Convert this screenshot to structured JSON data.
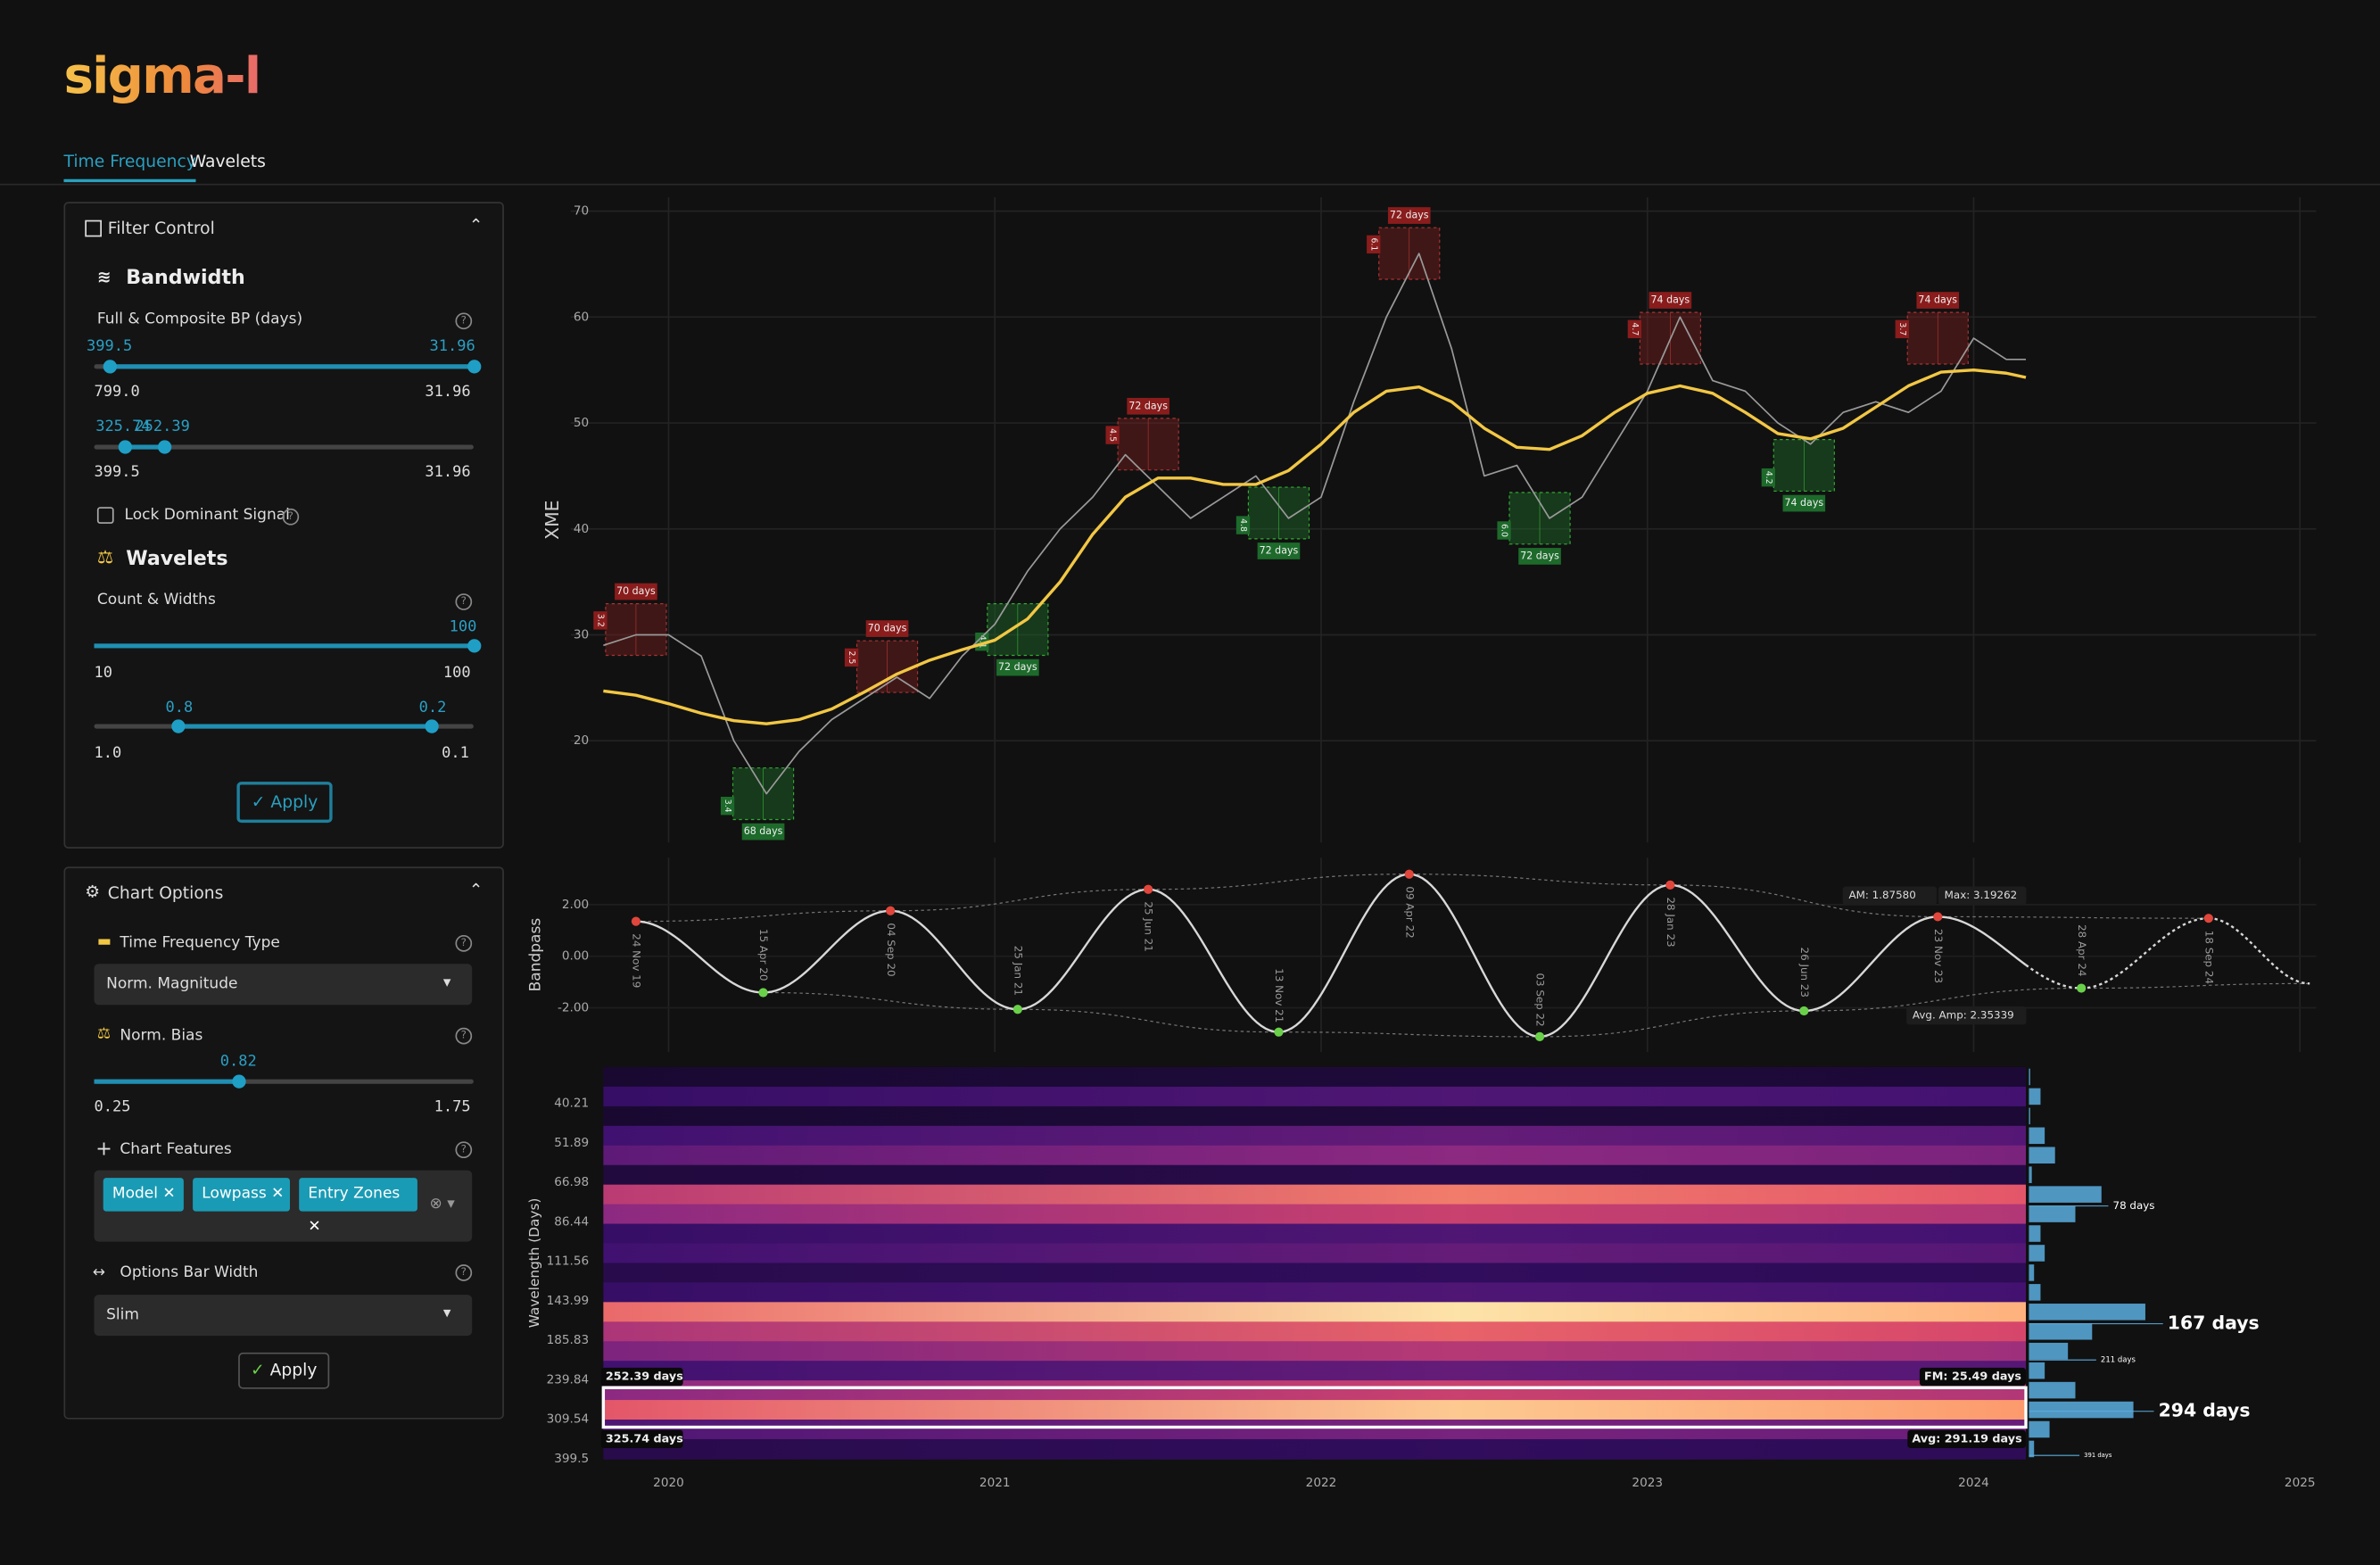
{
  "header": {
    "logo": "sigma-l"
  },
  "tabs": [
    "Time Frequency",
    "Wavelets"
  ],
  "filter_control": {
    "title": "Filter Control",
    "bandwidth": {
      "heading": "Bandwidth",
      "label": "Full & Composite BP (days)",
      "full_slider": {
        "values": [
          "399.5",
          "31.96"
        ],
        "range": [
          "799.0",
          "31.96"
        ]
      },
      "composite_slider": {
        "values": [
          "325.74",
          "252.39"
        ],
        "range": [
          "399.5",
          "31.96"
        ]
      },
      "lock_label": "Lock Dominant Signal"
    },
    "wavelets": {
      "heading": "Wavelets",
      "label": "Count & Widths",
      "count_slider": {
        "values": [
          "100"
        ],
        "range": [
          "10",
          "100"
        ]
      },
      "width_slider": {
        "values": [
          "0.8",
          "0.2"
        ],
        "range": [
          "1.0",
          "0.1"
        ]
      }
    },
    "apply": "Apply"
  },
  "chart_options": {
    "title": "Chart Options",
    "tf_type_label": "Time Frequency Type",
    "tf_type_value": "Norm. Magnitude",
    "bias_label": "Norm. Bias",
    "bias_slider": {
      "values": [
        "0.82"
      ],
      "range": [
        "0.25",
        "1.75"
      ]
    },
    "features_label": "Chart Features",
    "features": [
      "Model",
      "Lowpass",
      "Entry Zones"
    ],
    "bar_width_label": "Options Bar Width",
    "bar_width_value": "Slim",
    "apply": "Apply"
  },
  "chart_data": [
    {
      "type": "line",
      "y_label": "XME",
      "xlim": [
        2019.7,
        2025.05
      ],
      "ylim": [
        10.4,
        71.3
      ],
      "yticks": [
        20,
        30,
        40,
        50,
        60,
        70
      ],
      "grid": true,
      "x": [
        2019.8,
        2019.9,
        2020.0,
        2020.1,
        2020.2,
        2020.3,
        2020.4,
        2020.5,
        2020.6,
        2020.7,
        2020.8,
        2020.9,
        2021.0,
        2021.1,
        2021.2,
        2021.3,
        2021.4,
        2021.5,
        2021.6,
        2021.7,
        2021.8,
        2021.9,
        2022.0,
        2022.1,
        2022.2,
        2022.3,
        2022.4,
        2022.5,
        2022.6,
        2022.7,
        2022.8,
        2022.9,
        2023.0,
        2023.1,
        2023.2,
        2023.3,
        2023.4,
        2023.5,
        2023.6,
        2023.7,
        2023.8,
        2023.9,
        2024.0,
        2024.1,
        2024.16
      ],
      "series": [
        {
          "color": "#9a9a9a",
          "values": [
            29,
            30,
            30,
            28,
            20,
            15,
            19,
            22,
            24,
            26,
            24,
            28,
            31,
            36,
            40,
            43,
            47,
            44,
            41,
            43,
            45,
            41,
            43,
            52,
            60,
            66,
            57,
            45,
            46,
            41,
            43,
            48,
            53,
            60,
            54,
            53,
            50,
            48,
            51,
            52,
            51,
            53,
            58,
            56,
            56
          ]
        },
        {
          "color": "#f2c744",
          "values": [
            24.7,
            24.3,
            23.5,
            22.6,
            21.9,
            21.6,
            22.0,
            23.0,
            24.6,
            26.3,
            27.6,
            28.6,
            29.5,
            31.5,
            35,
            39.5,
            43,
            44.8,
            44.8,
            44.2,
            44.2,
            45.5,
            48,
            51,
            53,
            53.4,
            52,
            49.5,
            47.7,
            47.5,
            48.8,
            51,
            52.8,
            53.5,
            52.8,
            51,
            49,
            48.5,
            49.5,
            51.5,
            53.5,
            54.8,
            55,
            54.7,
            54.3
          ]
        }
      ],
      "annotations": [
        {
          "kind": "peak",
          "x": 2019.9,
          "y": 30.5,
          "label": "70 days",
          "strength": "3.2"
        },
        {
          "kind": "peak",
          "x": 2020.67,
          "y": 27,
          "label": "70 days",
          "strength": "2.5"
        },
        {
          "kind": "peak",
          "x": 2021.47,
          "y": 48,
          "label": "72 days",
          "strength": "4.5"
        },
        {
          "kind": "peak",
          "x": 2022.27,
          "y": 66,
          "label": "72 days",
          "strength": "6.1"
        },
        {
          "kind": "peak",
          "x": 2023.07,
          "y": 58,
          "label": "74 days",
          "strength": "4.7"
        },
        {
          "kind": "peak",
          "x": 2023.89,
          "y": 58,
          "label": "74 days",
          "strength": "3.7"
        },
        {
          "kind": "trough",
          "x": 2020.29,
          "y": 15,
          "label": "68 days",
          "strength": "3.4"
        },
        {
          "kind": "trough",
          "x": 2021.07,
          "y": 30.5,
          "label": "72 days",
          "strength": "4.1"
        },
        {
          "kind": "trough",
          "x": 2021.87,
          "y": 41.5,
          "label": "72 days",
          "strength": "4.8"
        },
        {
          "kind": "trough",
          "x": 2022.67,
          "y": 41,
          "label": "72 days",
          "strength": "6.0"
        },
        {
          "kind": "trough",
          "x": 2023.48,
          "y": 46,
          "label": "74 days",
          "strength": "4.2"
        }
      ]
    },
    {
      "type": "bandpass",
      "y_label": "Bandpass",
      "xlim": [
        2019.7,
        2025.05
      ],
      "ylim": [
        -3.71,
        3.82
      ],
      "yticks": [
        {
          "value": 2,
          "label": "2.00"
        },
        {
          "value": 0,
          "label": "0.00"
        },
        {
          "value": -2,
          "label": "-2.00"
        }
      ],
      "x": [
        2019.9,
        2020.29,
        2020.68,
        2021.07,
        2021.47,
        2021.87,
        2022.27,
        2022.67,
        2023.07,
        2023.48,
        2023.89,
        2024.33,
        2024.72,
        2025.03
      ],
      "values": [
        1.35,
        -1.41,
        1.76,
        -2.06,
        2.59,
        -2.94,
        3.18,
        -3.12,
        2.76,
        -2.12,
        1.53,
        -1.24,
        1.47,
        -1.06
      ],
      "dates": [
        "24 Nov 19",
        "15 Apr 20",
        "04 Sep 20",
        "25 Jan 21",
        "25 Jun 21",
        "13 Nov 21",
        "09 Apr 22",
        "03 Sep 22",
        "28 Jan 23",
        "26 Jun 23",
        "23 Nov 23",
        "28 Apr 24",
        "18 Sep 24",
        null
      ],
      "color": "#d8d8d8",
      "peak_color": "#e0463c",
      "trough_color": "#6ad04a",
      "annotations": [
        "AM: 1.87580",
        "Max: 3.19262",
        "Avg. Amp: 2.35339"
      ]
    },
    {
      "type": "heatmap",
      "y_label": "Wavelength (Days)",
      "xlim": [
        2019.7,
        2025.05
      ],
      "xticks": [
        2020,
        2021,
        2022,
        2023,
        2024,
        2025
      ],
      "ylim": [
        31.8,
        399.5
      ],
      "log_y": true,
      "yticks": [
        40.21,
        51.89,
        66.98,
        86.44,
        111.56,
        143.99,
        185.83,
        239.84,
        309.54,
        399.5
      ],
      "heat_rows": [
        0.1,
        0.3,
        0.1,
        0.35,
        0.45,
        0.15,
        0.75,
        0.6,
        0.3,
        0.35,
        0.2,
        0.3,
        0.95,
        0.7,
        0.55,
        0.35,
        0.6,
        0.9,
        0.4,
        0.2
      ],
      "peaks": {
        "values": [
          78,
          167,
          211,
          294,
          391
        ],
        "value_labels": [
          "78 days",
          "167 days",
          "211 days",
          "294 days",
          "391 days"
        ]
      },
      "band": {
        "values": [
          252.39,
          325.74
        ],
        "value_labels": [
          "252.39 days",
          "325.74 days"
        ]
      },
      "annotations": [
        "FM: 25.49 days",
        "Avg: 291.19 days"
      ]
    }
  ]
}
